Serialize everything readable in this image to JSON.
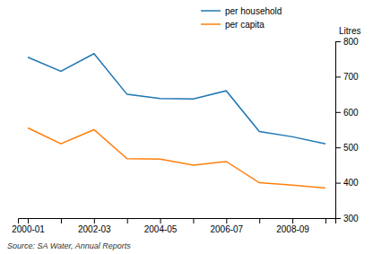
{
  "chart_data": {
    "type": "line",
    "y_label": "Litres",
    "annotations": [
      "Source: SA Water, Annual Reports"
    ],
    "categories": [
      "2000-01",
      null,
      "2002-03",
      null,
      "2004-05",
      null,
      "2006-07",
      null,
      "2008-09",
      null
    ],
    "series": [
      {
        "name": "per household",
        "values": [
          755,
          715,
          765,
          650,
          638,
          637,
          660,
          545,
          530,
          510
        ]
      },
      {
        "name": "per capita",
        "values": [
          555,
          510,
          550,
          468,
          467,
          450,
          460,
          400,
          393,
          385
        ]
      }
    ],
    "ylim": [
      300,
      800
    ],
    "yticks": [
      300,
      400,
      500,
      600,
      700,
      800
    ],
    "grid": false,
    "legend": "top-right"
  }
}
